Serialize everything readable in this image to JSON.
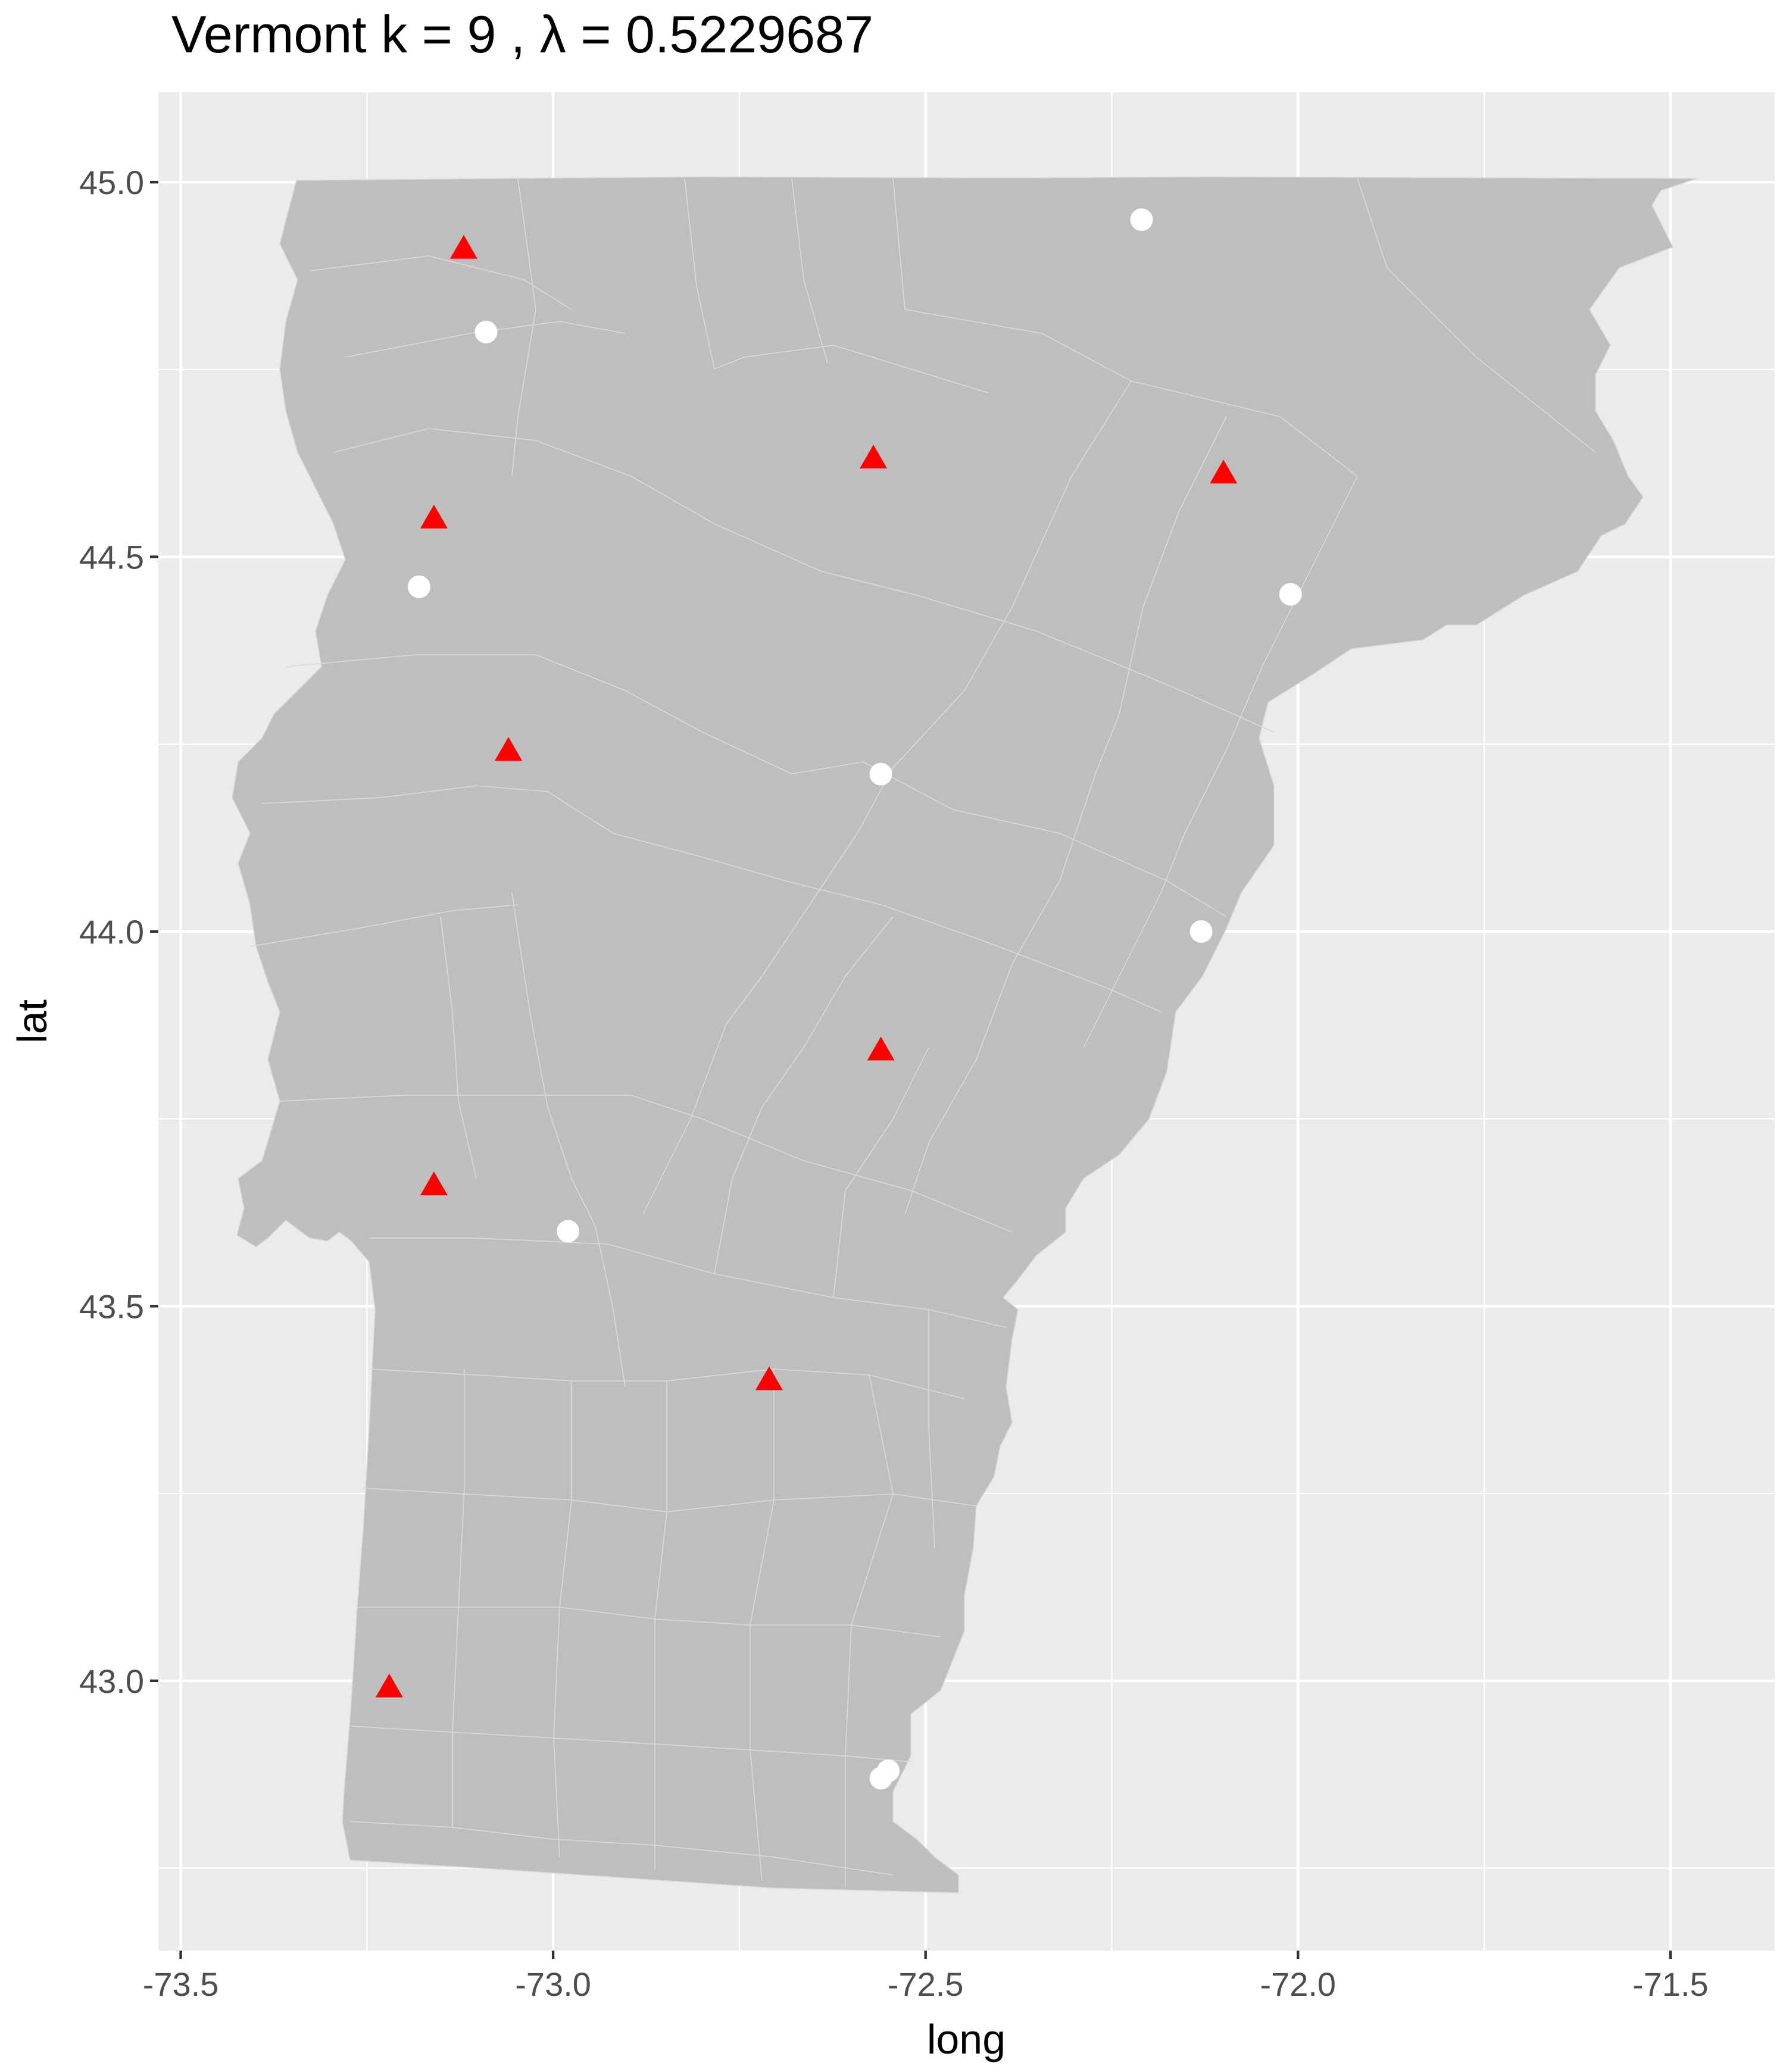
{
  "chart_data": {
    "type": "scatter",
    "title": "Vermont  k =  9 ,  λ  =  0.5229687",
    "xlabel": "long",
    "ylabel": "lat",
    "xlim": [
      -73.53,
      -71.36
    ],
    "ylim": [
      42.64,
      45.12
    ],
    "x_ticks": [
      -73.5,
      -73.0,
      -72.5,
      -72.0,
      -71.5
    ],
    "x_tick_labels": [
      "-73.5",
      "-73.0",
      "-72.5",
      "-72.0",
      "-71.5"
    ],
    "y_ticks": [
      43.0,
      43.5,
      44.0,
      44.5,
      45.0
    ],
    "y_tick_labels": [
      "43.0",
      "43.5",
      "44.0",
      "44.5",
      "45.0"
    ],
    "grid": true,
    "legend": "none",
    "background": "#ebebeb",
    "region_fill": "#bebebe",
    "series": [
      {
        "marker": "triangle",
        "color": "#ff0000",
        "points": [
          {
            "x": -73.12,
            "y": 44.91
          },
          {
            "x": -72.57,
            "y": 44.63
          },
          {
            "x": -72.1,
            "y": 44.61
          },
          {
            "x": -73.16,
            "y": 44.55
          },
          {
            "x": -73.06,
            "y": 44.24
          },
          {
            "x": -72.56,
            "y": 43.84
          },
          {
            "x": -73.16,
            "y": 43.66
          },
          {
            "x": -72.71,
            "y": 43.4
          },
          {
            "x": -73.22,
            "y": 42.99
          }
        ]
      },
      {
        "marker": "circle",
        "color": "#ffffff",
        "points": [
          {
            "x": -72.21,
            "y": 44.95
          },
          {
            "x": -73.09,
            "y": 44.8
          },
          {
            "x": -73.18,
            "y": 44.46
          },
          {
            "x": -72.01,
            "y": 44.45
          },
          {
            "x": -72.56,
            "y": 44.21
          },
          {
            "x": -72.13,
            "y": 44.0
          },
          {
            "x": -72.98,
            "y": 43.6
          },
          {
            "x": -72.56,
            "y": 42.87
          },
          {
            "x": -72.55,
            "y": 42.88
          }
        ]
      }
    ]
  }
}
